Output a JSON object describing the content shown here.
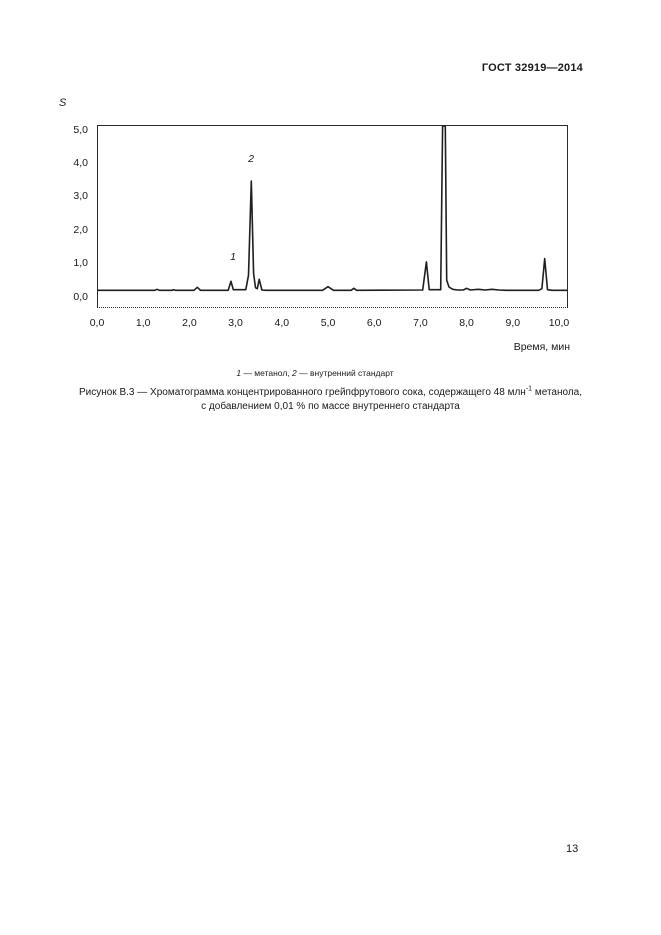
{
  "page": {
    "header": "ГОСТ 32919—2014",
    "page_number": "13"
  },
  "colors": {
    "text": "#1a1a1a",
    "frame": "#2b2b2b",
    "trace": "#1f1f1f",
    "page_bg": "#ffffff"
  },
  "figure": {
    "legend": {
      "n1": "1",
      "t1": " — метанол, ",
      "n2": "2",
      "t2": " — внутренний стандарт"
    },
    "caption": {
      "line1_pre": "Рисунок В.3 — Хроматограмма концентрированного грейпфрутового сока, содержащего 48 млн",
      "sup": "-1",
      "line1_post": " метанола,",
      "line2": "с добавлением 0,01 % по массе внутреннего стандарта"
    }
  },
  "chart_data": {
    "type": "line",
    "title": "",
    "xlabel": "Время, мин",
    "ylabel": "S",
    "xlim": [
      0,
      10.2
    ],
    "ylim": [
      0,
      5.0
    ],
    "grid": false,
    "x_ticks": [
      {
        "label": "0,0",
        "value": 0
      },
      {
        "label": "1,0",
        "value": 1
      },
      {
        "label": "2,0",
        "value": 2
      },
      {
        "label": "3,0",
        "value": 3
      },
      {
        "label": "4,0",
        "value": 4
      },
      {
        "label": "5,0",
        "value": 5
      },
      {
        "label": "6,0",
        "value": 6
      },
      {
        "label": "7,0",
        "value": 7
      },
      {
        "label": "8,0",
        "value": 8
      },
      {
        "label": "9,0",
        "value": 9
      },
      {
        "label": "10,0",
        "value": 10
      }
    ],
    "y_ticks": [
      {
        "label": "5,0",
        "value": 5
      },
      {
        "label": "4,0",
        "value": 4
      },
      {
        "label": "3,0",
        "value": 3
      },
      {
        "label": "2,0",
        "value": 2
      },
      {
        "label": "1,0",
        "value": 1
      },
      {
        "label": "0,0",
        "value": 0
      }
    ],
    "peaks": [
      {
        "time_min": 2.2,
        "height": 0.14
      },
      {
        "time_min": 2.9,
        "height": 0.32,
        "label": "1",
        "substance": "метанол"
      },
      {
        "time_min": 3.35,
        "height": 3.3,
        "label": "2",
        "substance": "внутренний стандарт"
      },
      {
        "time_min": 3.5,
        "height": 0.38
      },
      {
        "time_min": 5.0,
        "height": 0.16
      },
      {
        "time_min": 5.55,
        "height": 0.11
      },
      {
        "time_min": 7.1,
        "height": 0.9
      },
      {
        "time_min": 7.5,
        "height": 5.0,
        "note": "off-scale, clipped at plot top"
      },
      {
        "time_min": 9.7,
        "height": 1.0
      }
    ],
    "trace": [
      [
        0,
        0.05
      ],
      [
        0.6,
        0.05
      ],
      [
        1.25,
        0.05
      ],
      [
        1.3,
        0.08
      ],
      [
        1.35,
        0.05
      ],
      [
        1.62,
        0.05
      ],
      [
        1.66,
        0.07
      ],
      [
        1.7,
        0.05
      ],
      [
        2.1,
        0.05
      ],
      [
        2.17,
        0.14
      ],
      [
        2.24,
        0.05
      ],
      [
        2.84,
        0.05
      ],
      [
        2.9,
        0.32
      ],
      [
        2.95,
        0.07
      ],
      [
        3.22,
        0.07
      ],
      [
        3.28,
        0.5
      ],
      [
        3.34,
        3.32
      ],
      [
        3.39,
        0.55
      ],
      [
        3.43,
        0.13
      ],
      [
        3.47,
        0.1
      ],
      [
        3.51,
        0.38
      ],
      [
        3.57,
        0.06
      ],
      [
        3.65,
        0.05
      ],
      [
        4.88,
        0.05
      ],
      [
        5.0,
        0.16
      ],
      [
        5.12,
        0.05
      ],
      [
        5.5,
        0.05
      ],
      [
        5.56,
        0.11
      ],
      [
        5.62,
        0.05
      ],
      [
        7.05,
        0.06
      ],
      [
        7.13,
        0.9
      ],
      [
        7.19,
        0.07
      ],
      [
        7.44,
        0.07
      ],
      [
        7.48,
        5.6
      ],
      [
        7.54,
        5.6
      ],
      [
        7.57,
        0.35
      ],
      [
        7.62,
        0.15
      ],
      [
        7.7,
        0.08
      ],
      [
        7.8,
        0.06
      ],
      [
        7.93,
        0.06
      ],
      [
        8.0,
        0.11
      ],
      [
        8.08,
        0.06
      ],
      [
        8.25,
        0.08
      ],
      [
        8.4,
        0.06
      ],
      [
        8.55,
        0.08
      ],
      [
        8.7,
        0.06
      ],
      [
        8.85,
        0.05
      ],
      [
        9.56,
        0.05
      ],
      [
        9.63,
        0.1
      ],
      [
        9.69,
        1.0
      ],
      [
        9.75,
        0.07
      ],
      [
        9.85,
        0.05
      ],
      [
        10.19,
        0.05
      ]
    ]
  }
}
